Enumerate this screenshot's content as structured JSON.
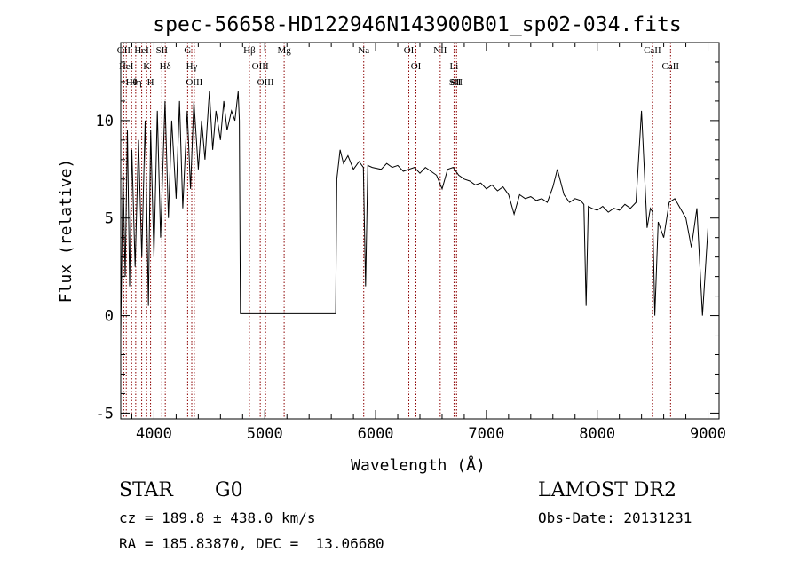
{
  "chart_data": {
    "type": "line",
    "title": "spec-56658-HD122946N143900B01_sp02-034.fits",
    "xlabel": "Wavelength (Å)",
    "ylabel": "Flux (relative)",
    "xlim": [
      3700,
      9100
    ],
    "ylim": [
      -5.3,
      14.0
    ],
    "x_ticks": [
      4000,
      5000,
      6000,
      7000,
      8000,
      9000
    ],
    "y_ticks": [
      -5,
      0,
      5,
      10
    ],
    "grid": false,
    "line_color": "#000000",
    "marker_color": "#8b0000",
    "series": [
      {
        "x": [
          3700,
          3720,
          3740,
          3760,
          3780,
          3800,
          3830,
          3860,
          3890,
          3920,
          3950,
          3970,
          4000,
          4030,
          4060,
          4100,
          4130,
          4160,
          4200,
          4230,
          4260,
          4300,
          4330,
          4360,
          4400,
          4430,
          4460,
          4500,
          4530,
          4560,
          4600,
          4630,
          4660,
          4700,
          4730,
          4760,
          4770,
          4780,
          5000,
          5300,
          5640,
          5650,
          5680,
          5710,
          5750,
          5800,
          5850,
          5890,
          5910,
          5930,
          5970,
          6050,
          6100,
          6150,
          6200,
          6250,
          6300,
          6350,
          6400,
          6450,
          6500,
          6550,
          6600,
          6650,
          6700,
          6750,
          6800,
          6850,
          6900,
          6950,
          7000,
          7050,
          7100,
          7150,
          7200,
          7250,
          7300,
          7350,
          7400,
          7450,
          7500,
          7550,
          7600,
          7640,
          7700,
          7750,
          7800,
          7850,
          7880,
          7900,
          7920,
          7950,
          8000,
          8050,
          8100,
          8150,
          8200,
          8250,
          8300,
          8350,
          8400,
          8450,
          8480,
          8500,
          8520,
          8550,
          8600,
          8650,
          8700,
          8750,
          8800,
          8850,
          8900,
          8950,
          9000
        ],
        "y": [
          -1.0,
          7.5,
          2.0,
          9.5,
          1.5,
          8.5,
          2.5,
          9.0,
          3.0,
          10.0,
          0.5,
          9.5,
          3.0,
          10.5,
          4.0,
          11.0,
          5.0,
          10.0,
          6.0,
          11.0,
          5.5,
          10.5,
          6.5,
          11.0,
          7.5,
          10.0,
          8.0,
          11.5,
          8.5,
          10.5,
          9.0,
          11.0,
          9.5,
          10.5,
          10.0,
          11.5,
          10.0,
          0.1,
          0.1,
          0.1,
          0.1,
          7.0,
          8.5,
          7.8,
          8.2,
          7.5,
          7.9,
          7.6,
          1.5,
          7.7,
          7.6,
          7.5,
          7.8,
          7.6,
          7.7,
          7.4,
          7.5,
          7.6,
          7.3,
          7.6,
          7.4,
          7.2,
          6.5,
          7.5,
          7.6,
          7.2,
          7.0,
          6.9,
          6.7,
          6.8,
          6.5,
          6.7,
          6.4,
          6.6,
          6.2,
          5.2,
          6.2,
          6.0,
          6.1,
          5.9,
          6.0,
          5.8,
          6.6,
          7.5,
          6.2,
          5.8,
          6.0,
          5.9,
          5.7,
          0.5,
          5.6,
          5.5,
          5.4,
          5.6,
          5.3,
          5.5,
          5.4,
          5.7,
          5.5,
          5.8,
          10.5,
          4.5,
          5.5,
          5.3,
          0.0,
          4.8,
          4.0,
          5.8,
          6.0,
          5.5,
          5.0,
          3.5,
          5.5,
          0.0,
          4.5
        ]
      }
    ],
    "lines": [
      {
        "wl": 3727,
        "labels": [
          "OII"
        ]
      },
      {
        "wl": 3750,
        "labels": [
          "HeI"
        ]
      },
      {
        "wl": 3798,
        "labels": [
          "Hθ"
        ]
      },
      {
        "wl": 3835,
        "labels": [
          "Hη"
        ]
      },
      {
        "wl": 3889,
        "labels": [
          "HeI"
        ]
      },
      {
        "wl": 3934,
        "labels": [
          "K"
        ]
      },
      {
        "wl": 3969,
        "labels": [
          "H"
        ]
      },
      {
        "wl": 4071,
        "labels": [
          "SII"
        ]
      },
      {
        "wl": 4102,
        "labels": [
          "Hδ"
        ]
      },
      {
        "wl": 4304,
        "labels": [
          "G"
        ]
      },
      {
        "wl": 4341,
        "labels": [
          "Hγ"
        ]
      },
      {
        "wl": 4364,
        "labels": [
          "OIII"
        ]
      },
      {
        "wl": 4861,
        "labels": [
          "Hβ"
        ]
      },
      {
        "wl": 4959,
        "labels": [
          "OIII"
        ]
      },
      {
        "wl": 5007,
        "labels": [
          "OIII"
        ]
      },
      {
        "wl": 5175,
        "labels": [
          "Mg"
        ]
      },
      {
        "wl": 5893,
        "labels": [
          "Na"
        ]
      },
      {
        "wl": 6300,
        "labels": [
          "OI"
        ]
      },
      {
        "wl": 6364,
        "labels": [
          "OI"
        ]
      },
      {
        "wl": 6583,
        "labels": [
          "NII"
        ]
      },
      {
        "wl": 6708,
        "labels": [
          "Li"
        ]
      },
      {
        "wl": 6717,
        "labels": [
          "SII"
        ]
      },
      {
        "wl": 6731,
        "labels": [
          "SII"
        ]
      },
      {
        "wl": 8498,
        "labels": [
          "CaII"
        ]
      },
      {
        "wl": 8662,
        "labels": [
          "CaII"
        ]
      }
    ]
  },
  "info": {
    "object_class": "STAR",
    "subclass": "G0",
    "survey": "LAMOST DR2",
    "cz": "cz = 189.8 ± 438.0 km/s",
    "obs_date": "Obs-Date: 20131231",
    "coords": "RA = 185.83870, DEC =  13.06680"
  }
}
